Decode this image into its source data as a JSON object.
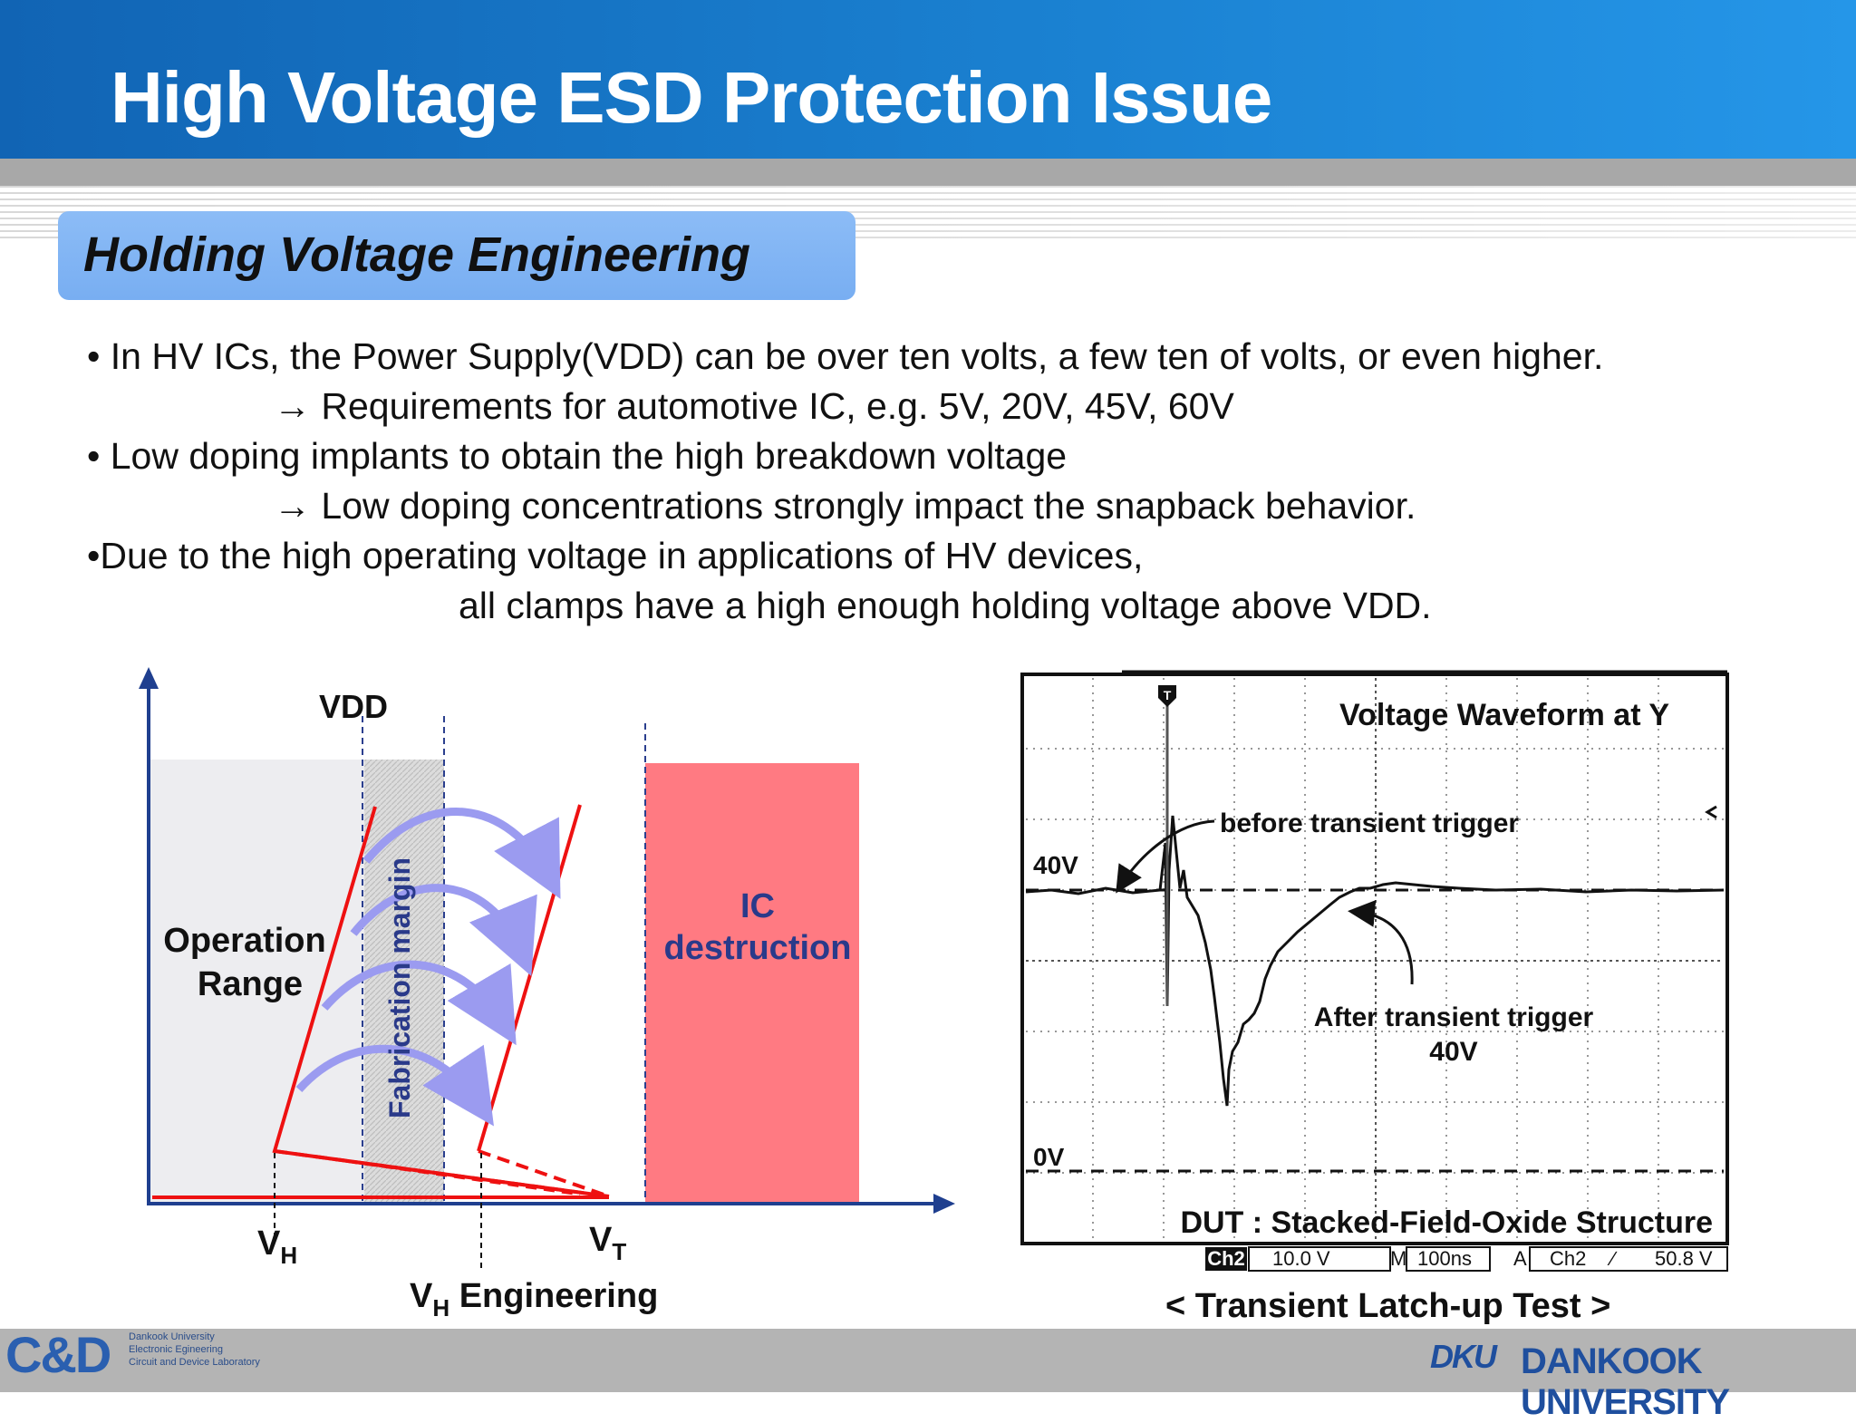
{
  "header": {
    "title": "High Voltage ESD Protection Issue"
  },
  "section": {
    "title": "Holding Voltage Engineering"
  },
  "bullets": {
    "l1": "• In HV ICs, the Power Supply(VDD) can be over ten volts, a few ten of volts, or even higher.",
    "l2": "→ Requirements for automotive IC, e.g. 5V, 20V, 45V, 60V",
    "l3": "• Low doping implants to obtain the high breakdown voltage",
    "l4": "→ Low doping concentrations strongly impact the snapback behavior.",
    "l5": "•Due to the high operating voltage in applications of HV devices,",
    "l6": "all clamps have a high enough holding voltage above VDD."
  },
  "diagram": {
    "vdd": "VDD",
    "operation1": "Operation",
    "operation2": "Range",
    "fab_margin": "Fabrication margin",
    "ic1": "IC",
    "ic2": "destruction",
    "vh": "V",
    "vh_sub": "H",
    "vt": "V",
    "vt_sub": "T",
    "vh_eng_v": "V",
    "vh_eng_sub": "H",
    "vh_eng_rest": " Engineering",
    "colors": {
      "operation": "#ededf0",
      "fab": "#d9d9d9",
      "ic": "#ff7a82",
      "red": "#ee1111",
      "arrow": "#9b9bf0",
      "axis": "#1f3f8f"
    }
  },
  "scope": {
    "title": "Voltage Waveform at Y",
    "before": "before transient trigger",
    "label_40v": "40V",
    "label_0v": "0V",
    "after1": "After transient trigger",
    "after2": "40V",
    "dut": "DUT : Stacked-Field-Oxide Structure",
    "ch": "Ch2",
    "volt": "10.0 V",
    "m": "M",
    "time": "100ns",
    "a": "A",
    "ch2": "Ch2",
    "slope": "∕",
    "trig": "50.8 V",
    "marker": "T"
  },
  "caption": "< Transient Latch-up Test >",
  "footer": {
    "logo": "C&D",
    "lab1": "Dankook University",
    "lab2": "Electronic Egineering",
    "lab3": "Circuit and Device Laboratory",
    "univ_logo": "DKU",
    "univ": "DANKOOK UNIVERSITY"
  }
}
